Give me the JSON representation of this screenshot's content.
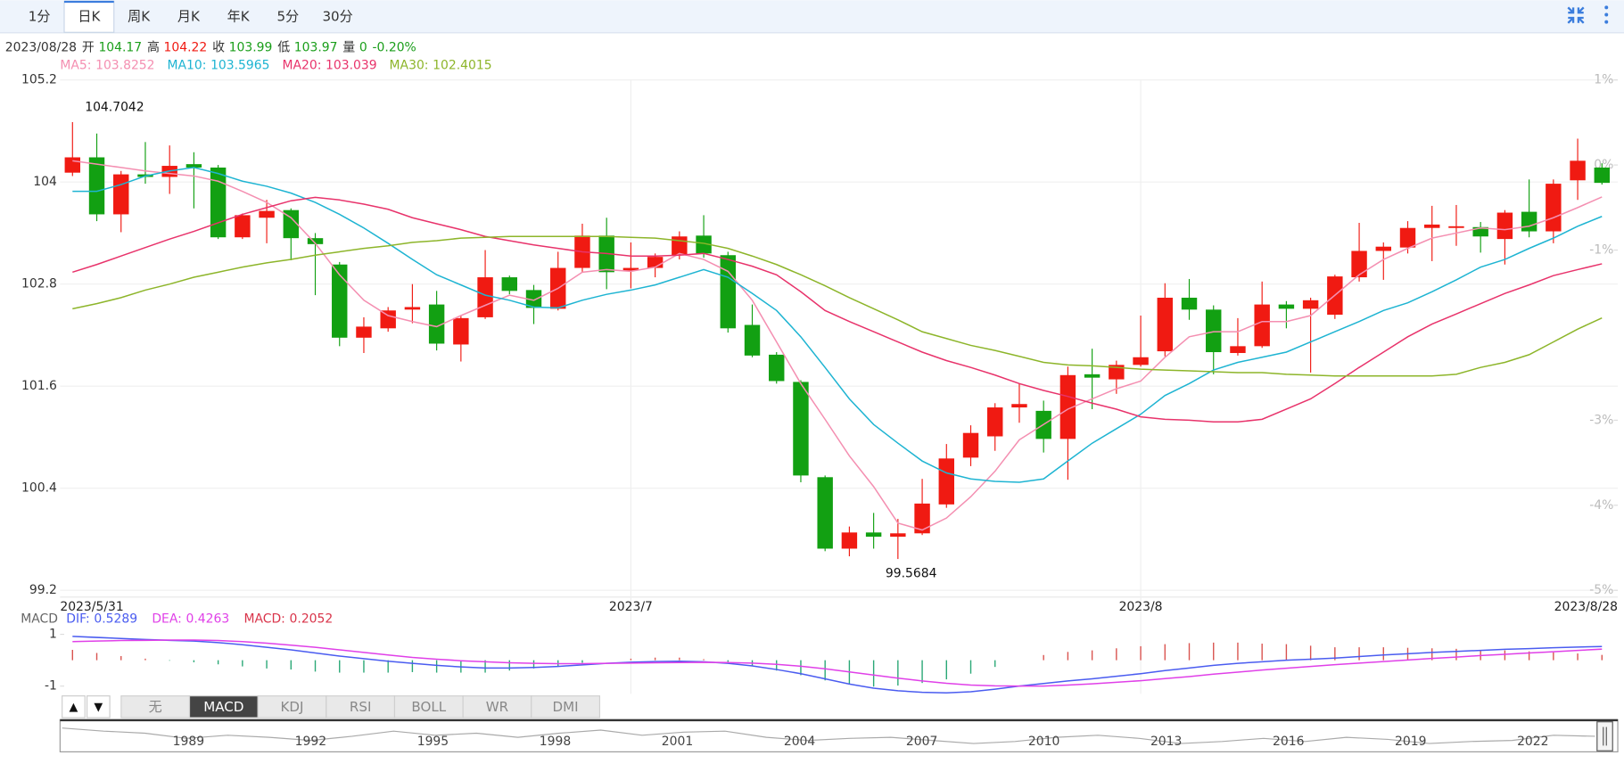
{
  "toolbar": {
    "tabs": [
      "1分",
      "日K",
      "周K",
      "月K",
      "年K",
      "5分",
      "30分"
    ],
    "selected": 1
  },
  "info": {
    "date": "2023/08/28",
    "items": [
      {
        "label": "开",
        "value": 104.17,
        "color": "#1a9e1a"
      },
      {
        "label": "高",
        "value": 104.22,
        "color": "#f01a12"
      },
      {
        "label": "收",
        "value": 103.99,
        "color": "#1a9e1a"
      },
      {
        "label": "低",
        "value": 103.97,
        "color": "#1a9e1a"
      },
      {
        "label": "量",
        "value": 0,
        "color": "#1a9e1a"
      }
    ],
    "change": "-0.20%",
    "change_color": "#1a9e1a"
  },
  "chart_data": [
    {
      "type": "candlestick",
      "categories": [
        "2023/5/31",
        null,
        null,
        null,
        null,
        null,
        null,
        null,
        null,
        null,
        null,
        null,
        null,
        null,
        null,
        null,
        null,
        null,
        null,
        null,
        null,
        null,
        null,
        "2023/7",
        null,
        null,
        null,
        null,
        null,
        null,
        null,
        null,
        null,
        null,
        null,
        null,
        null,
        null,
        null,
        null,
        null,
        null,
        null,
        null,
        "2023/8",
        null,
        null,
        null,
        null,
        null,
        null,
        null,
        null,
        null,
        null,
        null,
        null,
        null,
        null,
        null,
        null,
        null,
        null,
        "2023/8/28"
      ],
      "open": [
        104.11,
        104.29,
        103.62,
        104.09,
        104.06,
        104.21,
        104.17,
        103.35,
        103.58,
        103.67,
        103.34,
        103.03,
        102.17,
        102.28,
        102.5,
        102.56,
        102.09,
        102.41,
        102.88,
        102.73,
        102.51,
        102.99,
        103.37,
        102.96,
        102.99,
        103.14,
        103.37,
        103.14,
        102.32,
        101.97,
        101.65,
        100.53,
        99.69,
        99.88,
        99.83,
        99.87,
        100.21,
        100.76,
        101.01,
        101.35,
        101.31,
        100.98,
        101.74,
        101.68,
        101.85,
        102.01,
        102.64,
        102.5,
        101.99,
        102.07,
        102.56,
        102.51,
        102.44,
        102.88,
        103.19,
        103.23,
        103.46,
        103.46,
        103.47,
        103.33,
        103.65,
        103.42,
        104.02,
        104.17
      ],
      "high": [
        104.7042,
        104.57,
        104.13,
        104.47,
        104.43,
        104.35,
        104.2,
        103.63,
        103.79,
        103.69,
        103.4,
        103.06,
        102.41,
        102.53,
        102.8,
        102.72,
        102.43,
        103.2,
        102.9,
        102.79,
        103.18,
        103.51,
        103.58,
        103.29,
        103.16,
        103.42,
        103.61,
        103.18,
        102.56,
        102.0,
        101.67,
        100.55,
        99.95,
        100.11,
        100.04,
        100.51,
        100.92,
        101.14,
        101.4,
        101.63,
        101.43,
        101.83,
        102.04,
        101.9,
        102.43,
        102.81,
        102.86,
        102.55,
        102.4,
        102.83,
        102.6,
        102.64,
        102.91,
        103.52,
        103.29,
        103.54,
        103.72,
        103.73,
        103.53,
        103.67,
        104.03,
        104.03,
        104.51,
        104.22
      ],
      "low": [
        104.07,
        103.54,
        103.41,
        103.98,
        103.86,
        103.69,
        103.33,
        103.33,
        103.28,
        103.08,
        102.67,
        102.07,
        101.99,
        102.24,
        102.34,
        102.02,
        101.89,
        102.39,
        102.68,
        102.33,
        102.49,
        102.94,
        102.74,
        102.75,
        102.88,
        103.09,
        103.11,
        102.23,
        101.94,
        101.63,
        100.47,
        99.66,
        99.6,
        99.69,
        99.5684,
        99.85,
        100.17,
        100.66,
        100.84,
        101.17,
        100.82,
        100.5,
        101.33,
        101.51,
        101.83,
        101.95,
        102.38,
        101.74,
        101.96,
        102.05,
        102.28,
        101.76,
        102.39,
        102.83,
        102.85,
        103.16,
        103.07,
        103.25,
        103.17,
        103.03,
        103.35,
        103.28,
        103.79,
        103.97
      ],
      "close": [
        104.29,
        103.62,
        104.09,
        104.06,
        104.19,
        104.17,
        103.35,
        103.61,
        103.66,
        103.34,
        103.27,
        102.17,
        102.3,
        102.49,
        102.53,
        102.1,
        102.4,
        102.88,
        102.72,
        102.52,
        102.99,
        103.37,
        102.94,
        102.99,
        103.12,
        103.36,
        103.16,
        102.28,
        101.96,
        101.66,
        100.55,
        99.69,
        99.88,
        99.83,
        99.87,
        100.22,
        100.75,
        101.05,
        101.35,
        101.39,
        100.98,
        101.73,
        101.7,
        101.85,
        101.94,
        102.64,
        102.5,
        102.0,
        102.07,
        102.56,
        102.51,
        102.61,
        102.89,
        103.19,
        103.24,
        103.46,
        103.5,
        103.48,
        103.36,
        103.64,
        103.42,
        103.98,
        104.25,
        103.99
      ],
      "up_color": "#f01a12",
      "down_color": "#12a012",
      "ylim": [
        99.2,
        105.2
      ],
      "yticks": [
        105.2,
        104,
        102.8,
        101.6,
        100.4,
        99.2
      ],
      "y2lim": [
        -5,
        1
      ],
      "y2ticks": [
        {
          "value": 1,
          "label": "1%"
        },
        {
          "value": 0,
          "label": "0%"
        },
        {
          "value": -1,
          "label": "-1%"
        },
        {
          "value": -3,
          "label": "-3%"
        },
        {
          "value": -4,
          "label": "-4%"
        },
        {
          "value": -5,
          "label": "-5%"
        }
      ],
      "grid": true,
      "series": [
        {
          "name": "MA5:",
          "color": "#f48fb1",
          "values": [
            104.25,
            104.21,
            104.17,
            104.13,
            104.1,
            104.07,
            104.01,
            103.89,
            103.76,
            103.58,
            103.28,
            102.91,
            102.61,
            102.43,
            102.36,
            102.3,
            102.43,
            102.55,
            102.67,
            102.61,
            102.75,
            102.94,
            102.97,
            102.95,
            103.0,
            103.16,
            103.09,
            102.95,
            102.61,
            102.12,
            101.63,
            101.21,
            100.78,
            100.42,
            99.99,
            99.91,
            100.05,
            100.3,
            100.6,
            100.97,
            101.15,
            101.33,
            101.45,
            101.57,
            101.66,
            101.94,
            102.18,
            102.24,
            102.24,
            102.36,
            102.36,
            102.43,
            102.67,
            102.91,
            103.09,
            103.22,
            103.34,
            103.4,
            103.46,
            103.44,
            103.48,
            103.58,
            103.7,
            103.8252
          ]
        },
        {
          "name": "MA10:",
          "color": "#1eb4d2",
          "values": [
            103.89,
            103.89,
            103.97,
            104.07,
            104.13,
            104.17,
            104.1,
            104.01,
            103.95,
            103.87,
            103.76,
            103.62,
            103.46,
            103.28,
            103.09,
            102.91,
            102.79,
            102.67,
            102.61,
            102.53,
            102.52,
            102.61,
            102.68,
            102.73,
            102.79,
            102.88,
            102.97,
            102.88,
            102.69,
            102.49,
            102.18,
            101.82,
            101.45,
            101.15,
            100.93,
            100.72,
            100.58,
            100.51,
            100.48,
            100.47,
            100.51,
            100.72,
            100.93,
            101.1,
            101.27,
            101.49,
            101.63,
            101.79,
            101.88,
            101.94,
            102.0,
            102.12,
            102.24,
            102.36,
            102.49,
            102.58,
            102.71,
            102.85,
            103.0,
            103.09,
            103.22,
            103.34,
            103.48,
            103.5965
          ]
        },
        {
          "name": "MA20:",
          "color": "#e8336b",
          "values": [
            102.94,
            103.03,
            103.13,
            103.23,
            103.33,
            103.42,
            103.52,
            103.62,
            103.7,
            103.78,
            103.82,
            103.79,
            103.74,
            103.68,
            103.58,
            103.51,
            103.44,
            103.36,
            103.31,
            103.26,
            103.22,
            103.18,
            103.16,
            103.13,
            103.13,
            103.14,
            103.16,
            103.09,
            103.01,
            102.91,
            102.71,
            102.49,
            102.36,
            102.24,
            102.12,
            102.0,
            101.9,
            101.82,
            101.73,
            101.63,
            101.55,
            101.48,
            101.4,
            101.33,
            101.24,
            101.21,
            101.2,
            101.18,
            101.18,
            101.21,
            101.33,
            101.45,
            101.63,
            101.82,
            102.0,
            102.18,
            102.33,
            102.45,
            102.57,
            102.69,
            102.79,
            102.9,
            102.97,
            103.039
          ]
        },
        {
          "name": "MA30:",
          "color": "#8db52a",
          "values": [
            102.51,
            102.57,
            102.64,
            102.73,
            102.8,
            102.88,
            102.94,
            103.0,
            103.05,
            103.09,
            103.14,
            103.18,
            103.22,
            103.25,
            103.29,
            103.31,
            103.34,
            103.35,
            103.36,
            103.36,
            103.36,
            103.36,
            103.36,
            103.35,
            103.34,
            103.31,
            103.28,
            103.22,
            103.13,
            103.03,
            102.91,
            102.78,
            102.64,
            102.51,
            102.38,
            102.24,
            102.16,
            102.08,
            102.02,
            101.95,
            101.88,
            101.85,
            101.84,
            101.82,
            101.8,
            101.79,
            101.78,
            101.77,
            101.76,
            101.76,
            101.74,
            101.73,
            101.72,
            101.72,
            101.72,
            101.72,
            101.72,
            101.74,
            101.82,
            101.88,
            101.97,
            102.12,
            102.27,
            102.4015
          ]
        }
      ]
    },
    {
      "type": "macd",
      "title": "MACD",
      "ylim": [
        -1.3,
        1.3
      ],
      "yticks": [
        1,
        -1
      ],
      "up_color": "#d9534f",
      "down_color": "#2aa876",
      "series": [
        {
          "name": "DIF:",
          "color": "#4a5cf0",
          "values": [
            0.92,
            0.88,
            0.84,
            0.8,
            0.77,
            0.74,
            0.68,
            0.6,
            0.5,
            0.4,
            0.28,
            0.16,
            0.06,
            -0.04,
            -0.12,
            -0.2,
            -0.26,
            -0.3,
            -0.3,
            -0.28,
            -0.24,
            -0.18,
            -0.12,
            -0.08,
            -0.05,
            -0.04,
            -0.06,
            -0.12,
            -0.22,
            -0.36,
            -0.52,
            -0.72,
            -0.92,
            -1.08,
            -1.18,
            -1.24,
            -1.26,
            -1.22,
            -1.12,
            -1.0,
            -0.9,
            -0.8,
            -0.72,
            -0.62,
            -0.52,
            -0.4,
            -0.3,
            -0.2,
            -0.12,
            -0.06,
            0.0,
            0.04,
            0.08,
            0.14,
            0.2,
            0.25,
            0.3,
            0.34,
            0.38,
            0.42,
            0.45,
            0.48,
            0.51,
            0.5289
          ]
        },
        {
          "name": "DEA:",
          "color": "#e040e8",
          "values": [
            0.72,
            0.74,
            0.76,
            0.77,
            0.78,
            0.78,
            0.76,
            0.72,
            0.66,
            0.58,
            0.5,
            0.4,
            0.3,
            0.2,
            0.11,
            0.04,
            -0.02,
            -0.06,
            -0.1,
            -0.12,
            -0.13,
            -0.13,
            -0.12,
            -0.11,
            -0.1,
            -0.09,
            -0.08,
            -0.09,
            -0.11,
            -0.16,
            -0.23,
            -0.33,
            -0.45,
            -0.57,
            -0.69,
            -0.8,
            -0.89,
            -0.96,
            -0.99,
            -1.0,
            -1.0,
            -0.96,
            -0.91,
            -0.85,
            -0.79,
            -0.71,
            -0.63,
            -0.54,
            -0.46,
            -0.38,
            -0.31,
            -0.24,
            -0.17,
            -0.11,
            -0.05,
            0.01,
            0.07,
            0.12,
            0.18,
            0.23,
            0.28,
            0.33,
            0.38,
            0.4263
          ]
        },
        {
          "name": "MACD:",
          "color": "#d9344a",
          "values": [
            0.4,
            0.28,
            0.16,
            0.06,
            -0.02,
            -0.08,
            -0.16,
            -0.24,
            -0.32,
            -0.36,
            -0.44,
            -0.48,
            -0.48,
            -0.48,
            -0.46,
            -0.48,
            -0.48,
            -0.48,
            -0.4,
            -0.32,
            -0.22,
            -0.1,
            0.0,
            0.06,
            0.1,
            0.1,
            0.04,
            -0.06,
            -0.22,
            -0.4,
            -0.58,
            -0.78,
            -0.94,
            -1.02,
            -0.98,
            -0.88,
            -0.74,
            -0.52,
            -0.26,
            0.0,
            0.2,
            0.32,
            0.38,
            0.46,
            0.54,
            0.62,
            0.66,
            0.68,
            0.68,
            0.64,
            0.62,
            0.56,
            0.5,
            0.5,
            0.5,
            0.48,
            0.46,
            0.44,
            0.4,
            0.38,
            0.34,
            0.3,
            0.26,
            0.2052
          ]
        }
      ]
    }
  ],
  "indicator_bar": {
    "arrows": [
      "▲",
      "▼"
    ],
    "tabs": [
      "无",
      "MACD",
      "KDJ",
      "RSI",
      "BOLL",
      "WR",
      "DMI"
    ],
    "selected": 1
  },
  "navigator": {
    "years": [
      1989,
      1992,
      1995,
      1998,
      2001,
      2004,
      2007,
      2010,
      2013,
      2016,
      2019,
      2022
    ]
  }
}
